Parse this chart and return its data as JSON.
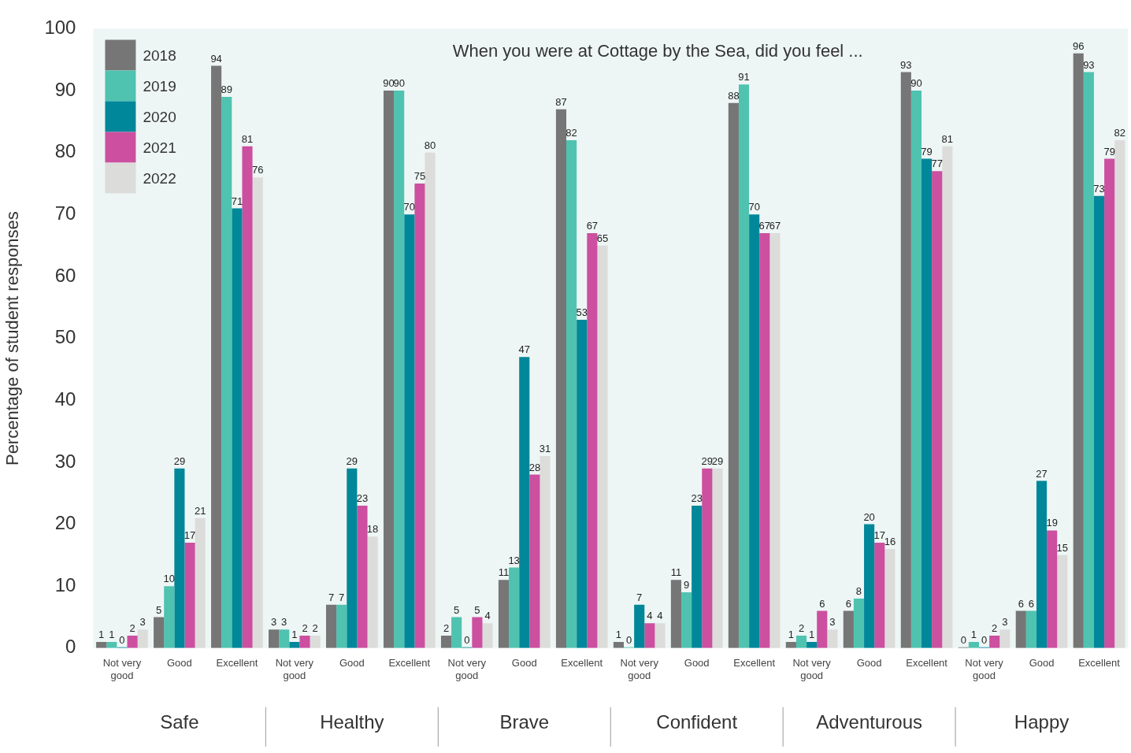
{
  "chart_data": {
    "type": "bar",
    "title": "When you were at Cottage by the Sea, did you feel ...",
    "ylabel": "Percentage of student responses",
    "categories": [
      "Not very good",
      "Good",
      "Excellent",
      "Not very good",
      "Good",
      "Excellent",
      "Not very good",
      "Good",
      "Excellent",
      "Not very good",
      "Good",
      "Excellent",
      "Not very good",
      "Good",
      "Excellent",
      "Not very good",
      "Good",
      "Excellent"
    ],
    "annotations": [
      "Safe",
      "Healthy",
      "Brave",
      "Confident",
      "Adventurous",
      "Happy"
    ],
    "series": [
      {
        "name": "2018",
        "color": "#767676",
        "values": [
          1,
          5,
          94,
          3,
          7,
          90,
          2,
          11,
          87,
          1,
          11,
          88,
          1,
          6,
          93,
          0,
          6,
          96
        ]
      },
      {
        "name": "2019",
        "color": "#4fc3b0",
        "values": [
          1,
          10,
          89,
          3,
          7,
          90,
          5,
          13,
          82,
          0,
          9,
          91,
          2,
          8,
          90,
          1,
          6,
          93
        ]
      },
      {
        "name": "2020",
        "color": "#00879a",
        "values": [
          0,
          29,
          71,
          1,
          29,
          70,
          0,
          47,
          53,
          7,
          23,
          70,
          1,
          20,
          79,
          0,
          27,
          73
        ]
      },
      {
        "name": "2021",
        "color": "#cc4fa0",
        "values": [
          2,
          17,
          81,
          2,
          23,
          75,
          5,
          28,
          67,
          4,
          29,
          67,
          6,
          17,
          77,
          2,
          19,
          79
        ]
      },
      {
        "name": "2022",
        "color": "#dcdcda",
        "values": [
          3,
          21,
          76,
          2,
          18,
          80,
          4,
          31,
          65,
          4,
          29,
          67,
          3,
          16,
          81,
          3,
          15,
          82
        ]
      }
    ],
    "ylim": [
      0,
      100
    ],
    "yticks": [
      0,
      10,
      20,
      30,
      40,
      50,
      60,
      70,
      80,
      90,
      100
    ],
    "grid": false,
    "legend": "top left",
    "data_labels": true
  }
}
